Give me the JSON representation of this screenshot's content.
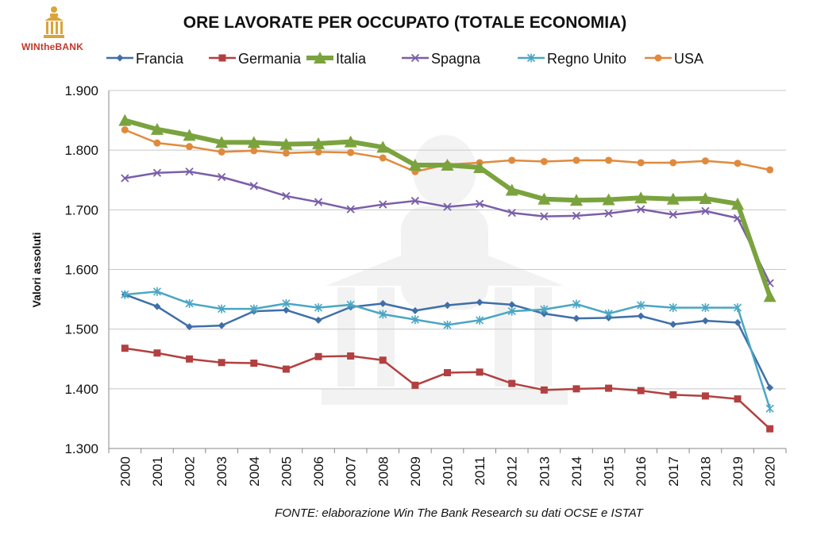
{
  "logo": {
    "text": "WINtheBANK"
  },
  "chart_data": {
    "type": "line",
    "title": "ORE LAVORATE PER OCCUPATO (TOTALE ECONOMIA)",
    "ylabel": "Valori assoluti",
    "xlabel": "",
    "source": "FONTE: elaborazione Win The Bank Research su dati OCSE e ISTAT",
    "legend_position": "top",
    "grid": true,
    "ylim": [
      1300,
      1900
    ],
    "yticks": [
      1300,
      1400,
      1500,
      1600,
      1700,
      1800,
      1900
    ],
    "ytick_labels": [
      "1.300",
      "1.400",
      "1.500",
      "1.600",
      "1.700",
      "1.800",
      "1.900"
    ],
    "categories": [
      "2000",
      "2001",
      "2002",
      "2003",
      "2004",
      "2005",
      "2006",
      "2007",
      "2008",
      "2009",
      "2010",
      "2011",
      "2012",
      "2013",
      "2014",
      "2015",
      "2016",
      "2017",
      "2018",
      "2019",
      "2020"
    ],
    "series": [
      {
        "name": "Francia",
        "color": "#3f6fa8",
        "marker": "diamond",
        "width": 2.5,
        "values": [
          1558,
          1538,
          1504,
          1506,
          1530,
          1532,
          1515,
          1537,
          1543,
          1531,
          1540,
          1545,
          1541,
          1526,
          1518,
          1519,
          1522,
          1508,
          1514,
          1511,
          1402
        ]
      },
      {
        "name": "Germania",
        "color": "#b24040",
        "marker": "square",
        "width": 2.5,
        "values": [
          1468,
          1460,
          1450,
          1444,
          1443,
          1433,
          1454,
          1455,
          1448,
          1406,
          1427,
          1428,
          1409,
          1398,
          1400,
          1401,
          1397,
          1390,
          1388,
          1383,
          1333
        ]
      },
      {
        "name": "Italia",
        "color": "#7aa33e",
        "marker": "triangle",
        "width": 6,
        "values": [
          1850,
          1835,
          1825,
          1813,
          1813,
          1810,
          1811,
          1814,
          1805,
          1775,
          1775,
          1771,
          1733,
          1718,
          1716,
          1717,
          1720,
          1718,
          1719,
          1710,
          1555
        ]
      },
      {
        "name": "Spagna",
        "color": "#7a5ea8",
        "marker": "x",
        "width": 2.5,
        "values": [
          1753,
          1762,
          1764,
          1755,
          1740,
          1723,
          1713,
          1701,
          1709,
          1715,
          1705,
          1710,
          1695,
          1689,
          1690,
          1694,
          1701,
          1692,
          1698,
          1686,
          1577
        ]
      },
      {
        "name": "Regno Unito",
        "color": "#4aa6c4",
        "marker": "asterisk",
        "width": 2.5,
        "values": [
          1558,
          1563,
          1543,
          1534,
          1534,
          1543,
          1536,
          1541,
          1525,
          1516,
          1507,
          1515,
          1530,
          1533,
          1542,
          1526,
          1540,
          1536,
          1536,
          1536,
          1367
        ]
      },
      {
        "name": "USA",
        "color": "#e08a3c",
        "marker": "circle",
        "width": 2.5,
        "values": [
          1834,
          1812,
          1806,
          1797,
          1799,
          1795,
          1797,
          1796,
          1787,
          1764,
          1776,
          1779,
          1783,
          1781,
          1783,
          1783,
          1779,
          1779,
          1782,
          1778,
          1767
        ]
      }
    ]
  }
}
